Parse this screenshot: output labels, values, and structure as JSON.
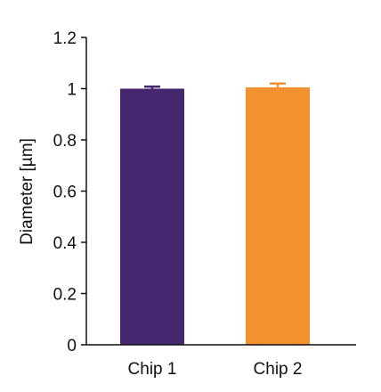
{
  "chart_data": {
    "type": "bar",
    "title": "",
    "xlabel": "",
    "ylabel": "Diameter  [µm]",
    "categories": [
      "Chip 1",
      "Chip 2"
    ],
    "values": [
      1.0,
      1.005
    ],
    "errors": [
      0.008,
      0.015
    ],
    "colors": [
      "#45276f",
      "#f39131"
    ],
    "ylim": [
      0,
      1.2
    ],
    "yticks": [
      {
        "value": 0,
        "label": "0"
      },
      {
        "value": 0.2,
        "label": "0.2"
      },
      {
        "value": 0.4,
        "label": "0.4"
      },
      {
        "value": 0.6,
        "label": "0.6"
      },
      {
        "value": 0.8,
        "label": "0.8"
      },
      {
        "value": 1.0,
        "label": "1"
      },
      {
        "value": 1.2,
        "label": "1.2"
      }
    ],
    "grid": false,
    "legend": "none"
  }
}
